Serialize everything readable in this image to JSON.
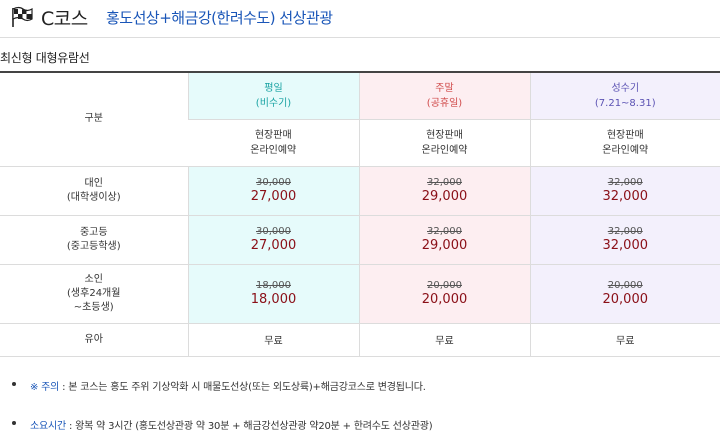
{
  "header": {
    "course_name": "C코스",
    "course_title": "홍도선상+해금강(한려수도) 선상관광"
  },
  "subtitle": "최신형 대형유람선",
  "table": {
    "category_label": "구분",
    "columns": [
      {
        "name": "평일",
        "sub": "(비수기)",
        "sale_line1": "현장판매",
        "sale_line2": "온라인예약"
      },
      {
        "name": "주말",
        "sub": "(공휴일)",
        "sale_line1": "현장판매",
        "sale_line2": "온라인예약"
      },
      {
        "name": "성수기",
        "sub": "(7.21~8.31)",
        "sale_line1": "현장판매",
        "sale_line2": "온라인예약"
      }
    ],
    "rows": [
      {
        "label1": "대인",
        "label2": "(대학생이상)",
        "label3": "",
        "prices": [
          {
            "old": "30,000",
            "new": "27,000"
          },
          {
            "old": "32,000",
            "new": "29,000"
          },
          {
            "old": "32,000",
            "new": "32,000"
          }
        ]
      },
      {
        "label1": "중고등",
        "label2": "(중고등학생)",
        "label3": "",
        "prices": [
          {
            "old": "30,000",
            "new": "27,000"
          },
          {
            "old": "32,000",
            "new": "29,000"
          },
          {
            "old": "32,000",
            "new": "32,000"
          }
        ]
      },
      {
        "label1": "소인",
        "label2": "(생후24개월",
        "label3": "~초등생)",
        "prices": [
          {
            "old": "18,000",
            "new": "18,000"
          },
          {
            "old": "20,000",
            "new": "20,000"
          },
          {
            "old": "20,000",
            "new": "20,000"
          }
        ]
      }
    ],
    "infant": {
      "label": "유아",
      "values": [
        "무료",
        "무료",
        "무료"
      ]
    }
  },
  "notes": [
    {
      "key": "※ 주의",
      "text": " : 본 코스는 홍도 주위 기상악화 시 매물도선상(또는 외도상륙)+해금강코스로 변경됩니다."
    },
    {
      "key": "소요시간",
      "text": " : 왕복 약 3시간 (홍도선상관광 약 30분 + 해금강선상관광 약20분 + 한려수도 선상관광)"
    }
  ],
  "colors": {
    "accent_blue": "#1a56b8",
    "weekday": "#19a3a3",
    "weekend": "#d04a4a",
    "peak": "#5b52b3",
    "price_red": "#8a0f17"
  },
  "icons": {
    "flag": "checkered-flag-icon"
  }
}
